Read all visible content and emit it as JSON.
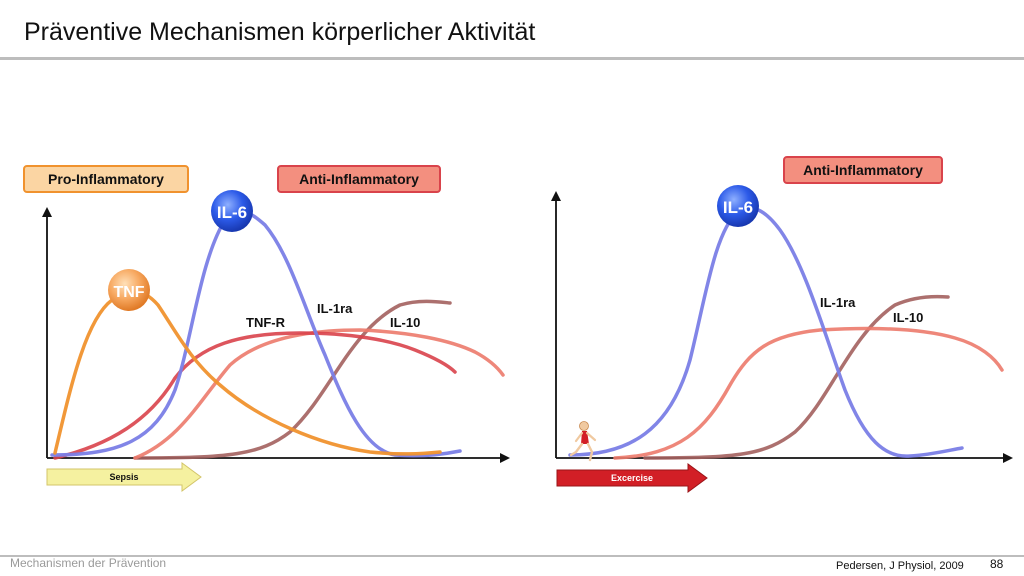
{
  "slide": {
    "title": "Präventive Mechanismen körperlicher Aktivität",
    "footer_left": "Mechanismen der Prävention",
    "reference": "Pedersen, J Physiol, 2009",
    "page_number": "88"
  },
  "left_panel": {
    "pro_box": "Pro-Inflammatory",
    "anti_box": "Anti-Inflammatory",
    "tnf_ball": "TNF",
    "il6_ball": "IL-6",
    "tnfr_label": "TNF-R",
    "il1ra_label": "IL-1ra",
    "il10_label": "IL-10",
    "arrow_label": "Sepsis"
  },
  "right_panel": {
    "anti_box": "Anti-Inflammatory",
    "il6_ball": "IL-6",
    "il1ra_label": "IL-1ra",
    "il10_label": "IL-10",
    "arrow_label": "Excercise",
    "runner_icon": "runner-icon"
  },
  "colors": {
    "tnf": "#f0922e",
    "il6": "#7a7ee6",
    "tnfr": "#d9434b",
    "il1ra": "#ec7a6c",
    "il10": "#a3605e",
    "pro_box_fill": "#fbd5a3",
    "pro_box_stroke": "#f0922e",
    "anti_box_fill": "#f38f7f",
    "anti_box_stroke": "#d9434b",
    "sepsis_arrow": "#f5f1a0",
    "exercise_arrow": "#d21f26"
  }
}
